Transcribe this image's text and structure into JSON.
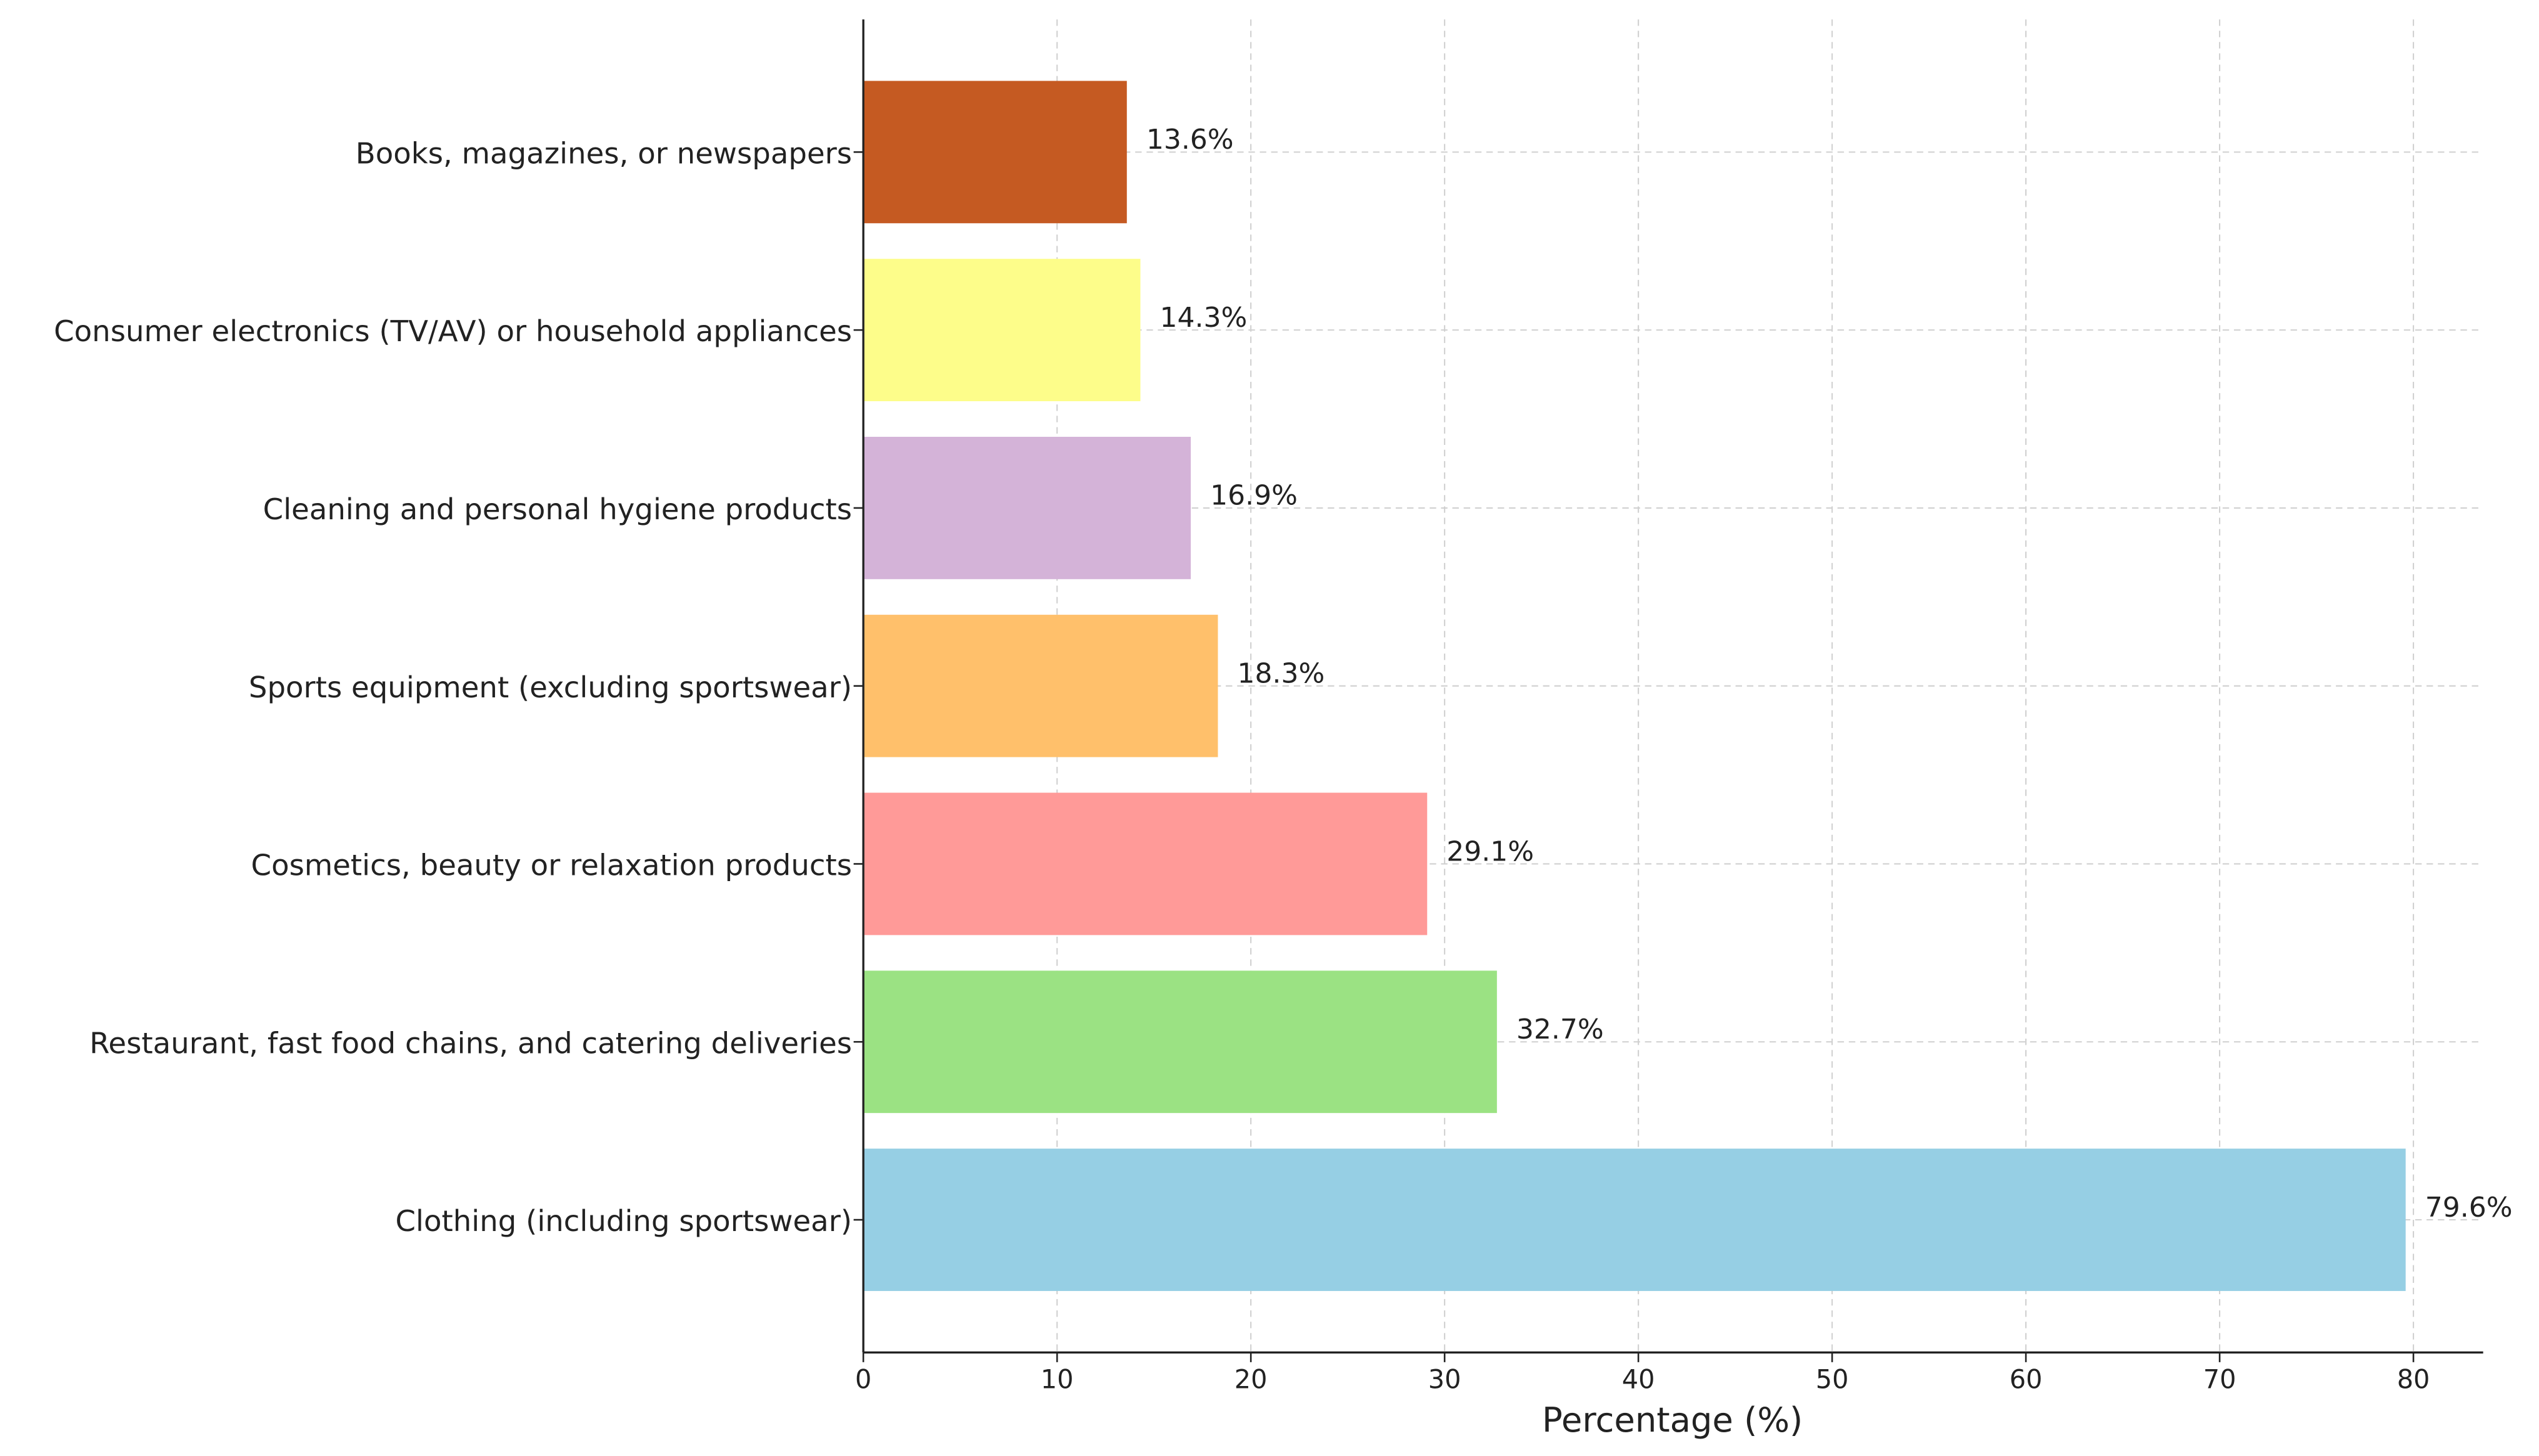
{
  "chart_data": {
    "type": "barh",
    "xlabel": "Percentage (%)",
    "categories": [
      "Clothing (including sportswear)",
      "Restaurant, fast food chains, and catering deliveries",
      "Cosmetics, beauty or relaxation products",
      "Sports equipment (excluding sportswear)",
      "Cleaning and personal hygiene products",
      "Consumer electronics (TV/AV) or household appliances",
      "Books, magazines, or newspapers"
    ],
    "values": [
      79.6,
      32.7,
      29.1,
      18.3,
      16.9,
      14.3,
      13.6
    ],
    "value_labels": [
      "79.6%",
      "32.7%",
      "29.1%",
      "18.3%",
      "16.9%",
      "14.3%",
      "13.6%"
    ],
    "colors": [
      "#96cfe4",
      "#9be283",
      "#ff9a98",
      "#ffc06b",
      "#d4b3d8",
      "#fdfd8a",
      "#c55a22"
    ],
    "xlim": [
      0,
      83.6
    ],
    "xticks": [
      0,
      10,
      20,
      30,
      40,
      50,
      60,
      70,
      80
    ],
    "grid": true
  }
}
